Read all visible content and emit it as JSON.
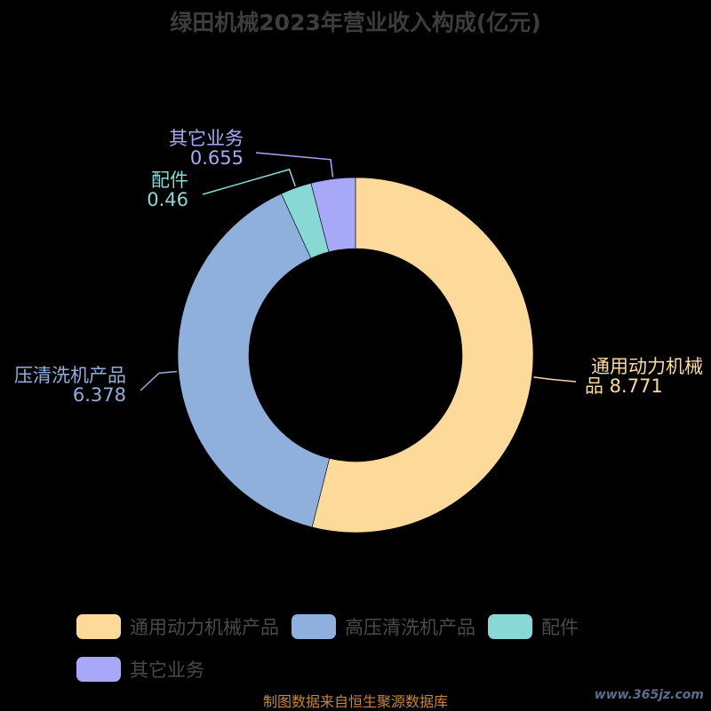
{
  "title": "绿田机械2023年营业收入构成(亿元)",
  "chart_data": {
    "type": "pie",
    "variant": "donut",
    "title": "绿田机械2023年营业收入构成(亿元)",
    "unit": "亿元",
    "slices": [
      {
        "name": "通用动力机械产品",
        "value": 8.771,
        "color": "#FEDA9A",
        "label_lines": [
          "通用动力机械",
          "品 8.771"
        ]
      },
      {
        "name": "高压清洗机产品",
        "value": 6.378,
        "color": "#8FB0DD",
        "label_lines": [
          "压清洗机产品",
          "6.378"
        ]
      },
      {
        "name": "配件",
        "value": 0.46,
        "color": "#88D8D6",
        "label_lines": [
          "配件",
          "0.46"
        ]
      },
      {
        "name": "其它业务",
        "value": 0.655,
        "color": "#A8A8F8",
        "label_lines": [
          "其它业务",
          "0.655"
        ]
      }
    ],
    "legend_position": "bottom"
  },
  "source": "制图数据来自恒生聚源数据库",
  "watermark": "www.365jz.com"
}
